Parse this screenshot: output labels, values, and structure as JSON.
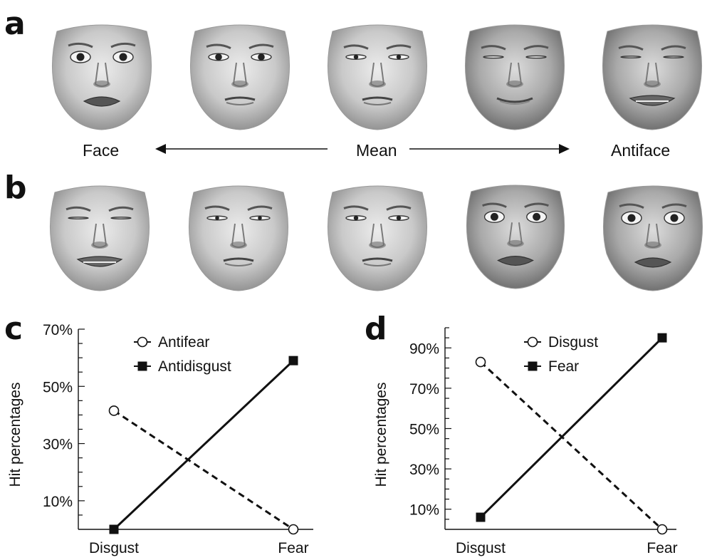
{
  "panels": {
    "a": {
      "letter": "a",
      "left_label": "Face",
      "middle_label": "Mean",
      "right_label": "Antiface"
    },
    "b": {
      "letter": "b"
    },
    "c": {
      "letter": "c"
    },
    "d": {
      "letter": "d"
    }
  },
  "face_rows": {
    "a": [
      {
        "name": "face-fear",
        "icon": "fear-face-photo"
      },
      {
        "name": "face-fear-weak",
        "icon": "weak-fear-face-photo"
      },
      {
        "name": "face-mean",
        "icon": "mean-face-photo"
      },
      {
        "name": "antiface-weak",
        "icon": "weak-antifear-face-photo"
      },
      {
        "name": "antiface-strong",
        "icon": "antifear-face-photo"
      }
    ],
    "b": [
      {
        "name": "face-disgust",
        "icon": "disgust-face-photo"
      },
      {
        "name": "face-disgust-weak",
        "icon": "weak-disgust-face-photo"
      },
      {
        "name": "face-mean",
        "icon": "mean-face-photo"
      },
      {
        "name": "antiface-weak",
        "icon": "weak-antidisgust-face-photo"
      },
      {
        "name": "antiface-strong",
        "icon": "antidisgust-face-photo"
      }
    ]
  },
  "chart_data": [
    {
      "type": "line",
      "panel": "c",
      "ylabel": "Hit percentages",
      "categories": [
        "Disgust",
        "Fear"
      ],
      "yticks": [
        "10%",
        "30%",
        "50%",
        "70%"
      ],
      "ytick_values": [
        10,
        30,
        50,
        70
      ],
      "ylim": [
        0,
        70
      ],
      "series": [
        {
          "name": "Antifear",
          "marker": "open-circle",
          "dash": true,
          "values": [
            41.5,
            0
          ]
        },
        {
          "name": "Antidisgust",
          "marker": "filled-square",
          "dash": false,
          "values": [
            0,
            59
          ]
        }
      ],
      "legend_position": "top-left"
    },
    {
      "type": "line",
      "panel": "d",
      "ylabel": "Hit percentages",
      "categories": [
        "Disgust",
        "Fear"
      ],
      "yticks": [
        "10%",
        "30%",
        "50%",
        "70%",
        "90%"
      ],
      "ytick_values": [
        10,
        30,
        50,
        70,
        90
      ],
      "ylim": [
        0,
        100
      ],
      "series": [
        {
          "name": "Disgust",
          "marker": "open-circle",
          "dash": true,
          "values": [
            83,
            0
          ]
        },
        {
          "name": "Fear",
          "marker": "filled-square",
          "dash": false,
          "values": [
            6,
            95
          ]
        }
      ],
      "legend_position": "top-center"
    }
  ]
}
